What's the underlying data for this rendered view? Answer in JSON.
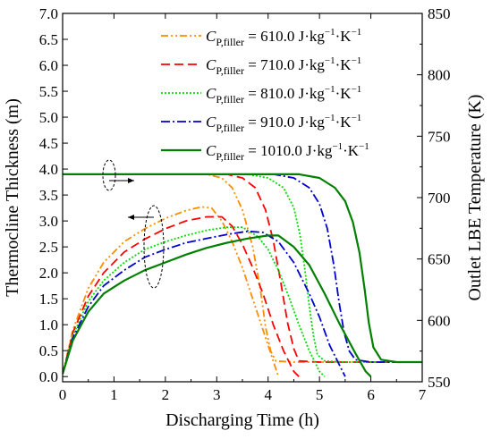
{
  "chart_data": {
    "type": "line",
    "xlabel": "Discharging Time (h)",
    "ylabel_left": "Thermocline Thickness (m)",
    "ylabel_right": "Outlet LBE Temperature (K)",
    "xlim": [
      0,
      7
    ],
    "ylim_left": [
      -0.1,
      7.0
    ],
    "ylim_right": [
      550,
      850
    ],
    "x_ticks": [
      "0",
      "1",
      "2",
      "3",
      "4",
      "5",
      "6",
      "7"
    ],
    "y_left_ticks": [
      "0.0",
      "0.5",
      "1.0",
      "1.5",
      "2.0",
      "2.5",
      "3.0",
      "3.5",
      "4.0",
      "4.5",
      "5.0",
      "5.5",
      "6.0",
      "6.5",
      "7.0"
    ],
    "y_right_ticks": [
      "550",
      "600",
      "650",
      "700",
      "750",
      "800",
      "850"
    ],
    "legend_position": "top-right",
    "series": [
      {
        "name": "C_P,filler = 610.0 J·kg⁻¹·K⁻¹",
        "legend": {
          "sym": "C",
          "sub": "P,filler",
          "rest": " = 610.0 J·kg",
          "sup1": "−1",
          "mid": "·K",
          "sup2": "−1"
        },
        "color": "#FF8C00",
        "dash": "8,3,2,3,2,3",
        "thickness": [
          [
            0,
            0.05
          ],
          [
            0.2,
            0.9
          ],
          [
            0.5,
            1.7
          ],
          [
            0.8,
            2.2
          ],
          [
            1.2,
            2.6
          ],
          [
            1.6,
            2.85
          ],
          [
            2.0,
            3.05
          ],
          [
            2.4,
            3.2
          ],
          [
            2.7,
            3.27
          ],
          [
            2.9,
            3.25
          ],
          [
            3.1,
            3.0
          ],
          [
            3.3,
            2.6
          ],
          [
            3.5,
            2.1
          ],
          [
            3.7,
            1.5
          ],
          [
            3.9,
            0.9
          ],
          [
            4.1,
            0.3
          ],
          [
            4.2,
            0.0
          ]
        ],
        "temperature": [
          [
            0,
            719
          ],
          [
            2.8,
            719
          ],
          [
            3.1,
            716
          ],
          [
            3.3,
            708
          ],
          [
            3.5,
            690
          ],
          [
            3.7,
            660
          ],
          [
            3.85,
            625
          ],
          [
            3.95,
            595
          ],
          [
            4.05,
            575
          ],
          [
            4.15,
            567
          ],
          [
            4.5,
            566
          ],
          [
            7.0,
            566
          ]
        ]
      },
      {
        "name": "C_P,filler = 710.0 J·kg⁻¹·K⁻¹",
        "legend": {
          "sym": "C",
          "sub": "P,filler",
          "rest": " = 710.0 J·kg",
          "sup1": "−1",
          "mid": "·K",
          "sup2": "−1"
        },
        "color": "#FF0000",
        "dash": "10,5",
        "thickness": [
          [
            0,
            0.05
          ],
          [
            0.2,
            0.85
          ],
          [
            0.5,
            1.55
          ],
          [
            0.8,
            2.0
          ],
          [
            1.2,
            2.4
          ],
          [
            1.6,
            2.65
          ],
          [
            2.0,
            2.85
          ],
          [
            2.4,
            3.0
          ],
          [
            2.8,
            3.08
          ],
          [
            3.1,
            3.08
          ],
          [
            3.3,
            2.9
          ],
          [
            3.5,
            2.55
          ],
          [
            3.7,
            2.1
          ],
          [
            3.9,
            1.6
          ],
          [
            4.1,
            1.0
          ],
          [
            4.3,
            0.5
          ],
          [
            4.5,
            0.1
          ],
          [
            4.6,
            0.0
          ]
        ],
        "temperature": [
          [
            0,
            719
          ],
          [
            3.2,
            719
          ],
          [
            3.5,
            716
          ],
          [
            3.75,
            708
          ],
          [
            3.95,
            690
          ],
          [
            4.1,
            665
          ],
          [
            4.25,
            630
          ],
          [
            4.38,
            598
          ],
          [
            4.5,
            577
          ],
          [
            4.6,
            567
          ],
          [
            5.0,
            566
          ],
          [
            7.0,
            566
          ]
        ]
      },
      {
        "name": "C_P,filler = 810.0 J·kg⁻¹·K⁻¹",
        "legend": {
          "sym": "C",
          "sub": "P,filler",
          "rest": " = 810.0 J·kg",
          "sup1": "−1",
          "mid": "·K",
          "sup2": "−1"
        },
        "color": "#00DD00",
        "dash": "2,2",
        "thickness": [
          [
            0,
            0.05
          ],
          [
            0.2,
            0.8
          ],
          [
            0.5,
            1.45
          ],
          [
            0.8,
            1.85
          ],
          [
            1.2,
            2.2
          ],
          [
            1.6,
            2.45
          ],
          [
            2.0,
            2.6
          ],
          [
            2.4,
            2.72
          ],
          [
            2.8,
            2.82
          ],
          [
            3.2,
            2.88
          ],
          [
            3.5,
            2.88
          ],
          [
            3.8,
            2.7
          ],
          [
            4.0,
            2.45
          ],
          [
            4.2,
            2.05
          ],
          [
            4.4,
            1.55
          ],
          [
            4.6,
            1.0
          ],
          [
            4.8,
            0.5
          ],
          [
            5.0,
            0.1
          ],
          [
            5.1,
            0.0
          ]
        ],
        "temperature": [
          [
            0,
            719
          ],
          [
            3.6,
            719
          ],
          [
            4.0,
            716
          ],
          [
            4.3,
            708
          ],
          [
            4.5,
            692
          ],
          [
            4.62,
            670
          ],
          [
            4.72,
            640
          ],
          [
            4.8,
            612
          ],
          [
            4.88,
            588
          ],
          [
            4.96,
            572
          ],
          [
            5.1,
            567
          ],
          [
            5.5,
            566
          ],
          [
            7.0,
            566
          ]
        ]
      },
      {
        "name": "C_P,filler = 910.0 J·kg⁻¹·K⁻¹",
        "legend": {
          "sym": "C",
          "sub": "P,filler",
          "rest": " = 910.0 J·kg",
          "sup1": "−1",
          "mid": "·K",
          "sup2": "−1"
        },
        "color": "#0000CC",
        "dash": "10,3,2,3",
        "thickness": [
          [
            0,
            0.05
          ],
          [
            0.2,
            0.75
          ],
          [
            0.5,
            1.35
          ],
          [
            0.8,
            1.75
          ],
          [
            1.2,
            2.05
          ],
          [
            1.6,
            2.3
          ],
          [
            2.0,
            2.45
          ],
          [
            2.4,
            2.58
          ],
          [
            2.8,
            2.66
          ],
          [
            3.2,
            2.74
          ],
          [
            3.6,
            2.8
          ],
          [
            3.9,
            2.78
          ],
          [
            4.2,
            2.6
          ],
          [
            4.5,
            2.2
          ],
          [
            4.8,
            1.6
          ],
          [
            5.0,
            1.15
          ],
          [
            5.2,
            0.6
          ],
          [
            5.4,
            0.2
          ],
          [
            5.5,
            0.0
          ]
        ],
        "temperature": [
          [
            0,
            719
          ],
          [
            4.1,
            719
          ],
          [
            4.5,
            716
          ],
          [
            4.8,
            708
          ],
          [
            5.0,
            695
          ],
          [
            5.15,
            675
          ],
          [
            5.28,
            645
          ],
          [
            5.38,
            615
          ],
          [
            5.48,
            590
          ],
          [
            5.58,
            575
          ],
          [
            5.7,
            568
          ],
          [
            6.0,
            566
          ],
          [
            7.0,
            566
          ]
        ]
      },
      {
        "name": "C_P,filler = 1010.0 J·kg⁻¹·K⁻¹",
        "legend": {
          "sym": "C",
          "sub": "P,filler",
          "rest": " = 1010.0 J·kg",
          "sup1": "−1",
          "mid": "·K",
          "sup2": "−1"
        },
        "color": "#008000",
        "dash": "",
        "thickness": [
          [
            0,
            0.05
          ],
          [
            0.2,
            0.7
          ],
          [
            0.5,
            1.25
          ],
          [
            0.8,
            1.6
          ],
          [
            1.2,
            1.85
          ],
          [
            1.6,
            2.05
          ],
          [
            2.0,
            2.2
          ],
          [
            2.4,
            2.35
          ],
          [
            2.8,
            2.48
          ],
          [
            3.2,
            2.58
          ],
          [
            3.6,
            2.66
          ],
          [
            4.0,
            2.72
          ],
          [
            4.2,
            2.72
          ],
          [
            4.5,
            2.5
          ],
          [
            4.8,
            2.15
          ],
          [
            5.1,
            1.6
          ],
          [
            5.4,
            1.0
          ],
          [
            5.7,
            0.45
          ],
          [
            5.9,
            0.1
          ],
          [
            6.0,
            0.0
          ]
        ],
        "temperature": [
          [
            0,
            719
          ],
          [
            4.6,
            719
          ],
          [
            5.0,
            716
          ],
          [
            5.3,
            708
          ],
          [
            5.5,
            697
          ],
          [
            5.65,
            680
          ],
          [
            5.78,
            655
          ],
          [
            5.88,
            625
          ],
          [
            5.96,
            598
          ],
          [
            6.05,
            578
          ],
          [
            6.2,
            568
          ],
          [
            6.5,
            566
          ],
          [
            7.0,
            566
          ]
        ]
      }
    ]
  }
}
